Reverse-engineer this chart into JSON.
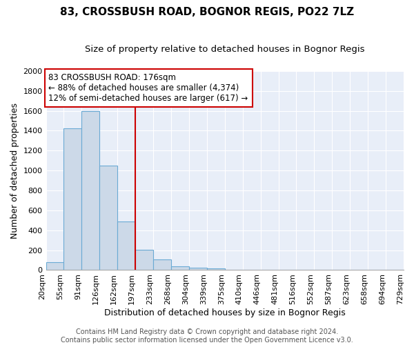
{
  "title": "83, CROSSBUSH ROAD, BOGNOR REGIS, PO22 7LZ",
  "subtitle": "Size of property relative to detached houses in Bognor Regis",
  "xlabel": "Distribution of detached houses by size in Bognor Regis",
  "ylabel": "Number of detached properties",
  "bar_values": [
    80,
    1420,
    1600,
    1050,
    490,
    205,
    105,
    40,
    25,
    20,
    0,
    0,
    0,
    0,
    0,
    0,
    0,
    0,
    0,
    0
  ],
  "bin_labels": [
    "20sqm",
    "55sqm",
    "91sqm",
    "126sqm",
    "162sqm",
    "197sqm",
    "233sqm",
    "268sqm",
    "304sqm",
    "339sqm",
    "375sqm",
    "410sqm",
    "446sqm",
    "481sqm",
    "516sqm",
    "552sqm",
    "587sqm",
    "623sqm",
    "658sqm",
    "694sqm",
    "729sqm"
  ],
  "bar_color": "#ccd9e8",
  "bar_edge_color": "#6aaad4",
  "reference_line_color": "#cc0000",
  "reference_bin_index": 4,
  "annotation_text": "83 CROSSBUSH ROAD: 176sqm\n← 88% of detached houses are smaller (4,374)\n12% of semi-detached houses are larger (617) →",
  "annotation_box_facecolor": "#ffffff",
  "annotation_box_edgecolor": "#cc0000",
  "ylim": [
    0,
    2000
  ],
  "yticks": [
    0,
    200,
    400,
    600,
    800,
    1000,
    1200,
    1400,
    1600,
    1800,
    2000
  ],
  "background_color": "#e8eef8",
  "grid_color": "#ffffff",
  "footer_text": "Contains HM Land Registry data © Crown copyright and database right 2024.\nContains public sector information licensed under the Open Government Licence v3.0.",
  "title_fontsize": 11,
  "subtitle_fontsize": 9.5,
  "xlabel_fontsize": 9,
  "ylabel_fontsize": 9,
  "tick_fontsize": 8,
  "annotation_fontsize": 8.5,
  "footer_fontsize": 7
}
